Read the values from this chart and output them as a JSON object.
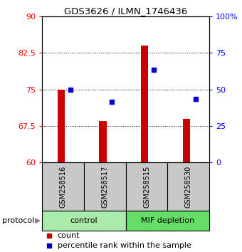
{
  "title": "GDS3626 / ILMN_1746436",
  "samples": [
    "GSM258516",
    "GSM258517",
    "GSM258515",
    "GSM258530"
  ],
  "bar_values": [
    75.0,
    68.5,
    84.0,
    69.0
  ],
  "percentile_values": [
    75.0,
    72.5,
    79.0,
    73.0
  ],
  "bar_color": "#cc0000",
  "percentile_color": "#0000cc",
  "ylim_left": [
    60,
    90
  ],
  "ylim_right": [
    0,
    100
  ],
  "yticks_left": [
    60,
    67.5,
    75,
    82.5,
    90
  ],
  "yticks_left_labels": [
    "60",
    "67.5",
    "75",
    "82.5",
    "90"
  ],
  "yticks_right": [
    0,
    25,
    50,
    75,
    100
  ],
  "yticks_right_labels": [
    "0",
    "25",
    "50",
    "75",
    "100%"
  ],
  "group_box_color_control": "#aaeaaa",
  "group_box_color_mif": "#66dd66",
  "sample_box_color": "#c8c8c8",
  "protocol_label": "protocol",
  "legend_count_label": "count",
  "legend_percentile_label": "percentile rank within the sample",
  "bar_bottom": 60,
  "bar_width": 0.18
}
